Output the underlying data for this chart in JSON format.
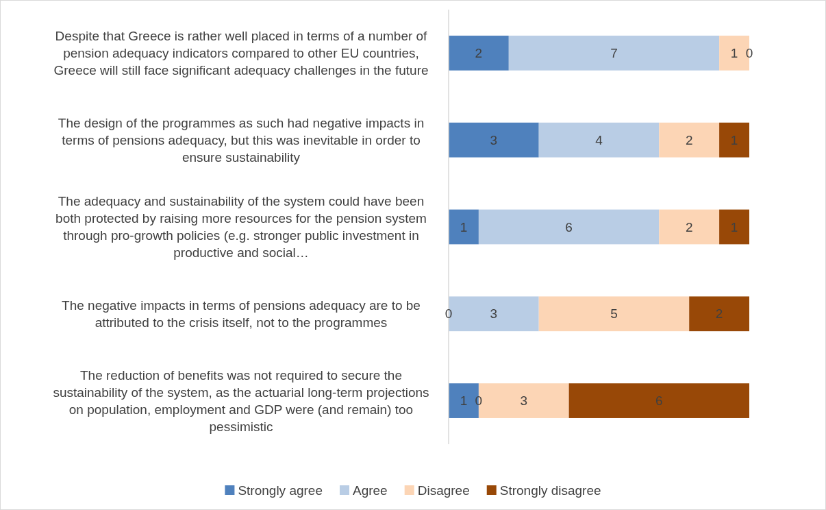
{
  "chart_data": {
    "type": "bar",
    "orientation": "horizontal",
    "stacked": true,
    "tick_labels": "y",
    "legend": "bottom",
    "grid": false,
    "xlim": [
      0,
      10
    ],
    "categories": [
      "Despite that Greece is rather well placed in terms of a number of pension adequacy indicators compared to other EU countries, Greece will still face significant adequacy challenges in the future",
      "The design of the programmes as such had negative impacts in terms of pensions adequacy, but this was inevitable in order to ensure sustainability",
      "The adequacy and sustainability of the system could have been both protected by raising more resources for the pension system through pro-growth policies (e.g. stronger public investment in productive and social…",
      "The negative impacts in terms of pensions adequacy are to be attributed to the crisis itself, not to the programmes",
      "The reduction of benefits was not required to secure the sustainability of the system, as the actuarial long-term projections on population, employment and GDP were (and remain) too pessimistic"
    ],
    "series": [
      {
        "name": "Strongly agree",
        "color": "#4f81bd",
        "values": [
          2,
          3,
          1,
          0,
          1
        ],
        "value_labels": [
          "2",
          "3",
          "1",
          null,
          "1"
        ]
      },
      {
        "name": "Agree",
        "color": "#b9cde5",
        "values": [
          7,
          4,
          6,
          3,
          0
        ],
        "value_labels": [
          "7",
          "4",
          "6",
          "3",
          null
        ]
      },
      {
        "name": "Disagree",
        "color": "#fcd5b5",
        "values": [
          1,
          2,
          2,
          5,
          3
        ],
        "value_labels": [
          "1",
          "2",
          "2",
          "5",
          "3"
        ]
      },
      {
        "name": "Strongly disagree",
        "color": "#984807",
        "values": [
          0,
          1,
          1,
          2,
          6
        ],
        "value_labels": [
          "0",
          "1",
          "1",
          "2",
          "6"
        ]
      }
    ],
    "annotations": [
      {
        "text": "0",
        "x": 0,
        "y": "The negative impacts in terms of pensions adequacy are to be attributed to the crisis itself, not to the programmes"
      },
      {
        "text": "0",
        "x": 1,
        "y": "The reduction of benefits was not required to secure the sustainability of the system, as the actuarial long-term projections on population, employment and GDP were (and remain) too pessimistic"
      }
    ]
  }
}
